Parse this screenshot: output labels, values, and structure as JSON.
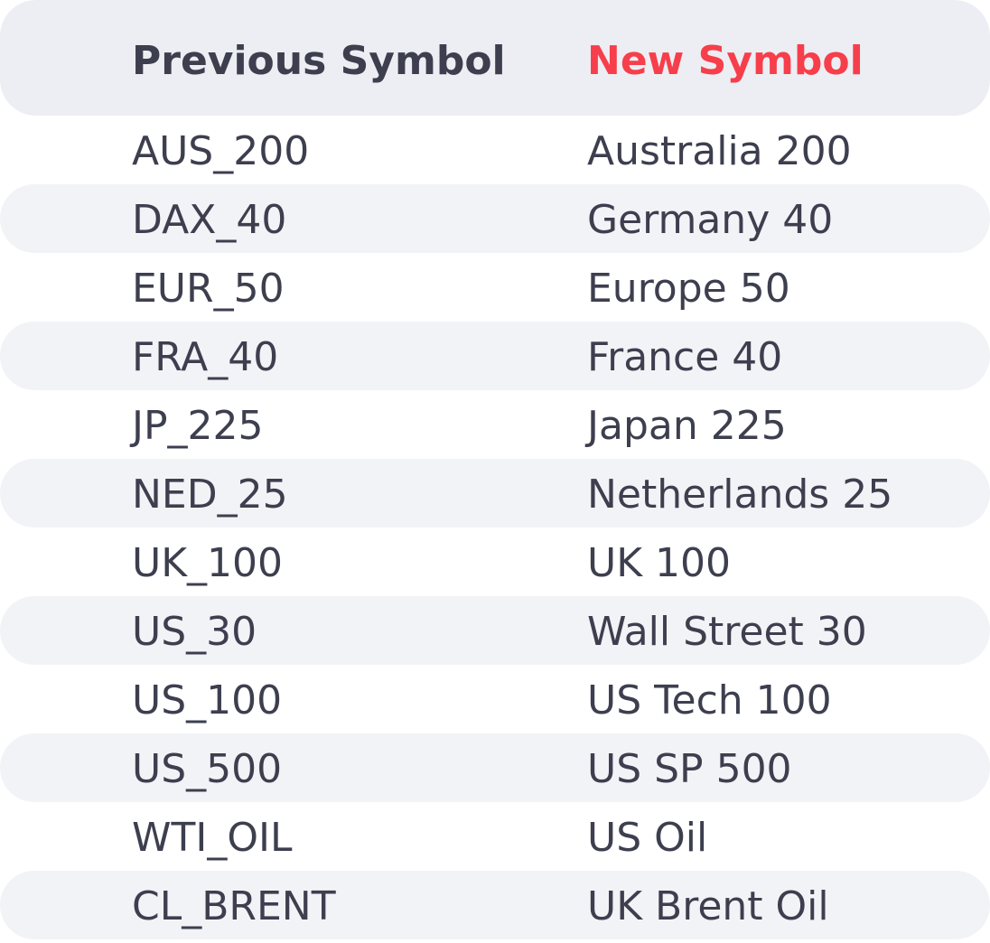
{
  "colors": {
    "header_background": "#eceef3",
    "row_stripe": "#f2f3f6",
    "text": "#3d3f4f",
    "accent": "#f73e4b"
  },
  "table": {
    "headers": {
      "previous": "Previous Symbol",
      "new": "New Symbol"
    },
    "rows": [
      {
        "previous": "AUS_200",
        "new": "Australia 200"
      },
      {
        "previous": "DAX_40",
        "new": "Germany 40"
      },
      {
        "previous": "EUR_50",
        "new": "Europe 50"
      },
      {
        "previous": "FRA_40",
        "new": "France 40"
      },
      {
        "previous": "JP_225",
        "new": "Japan 225"
      },
      {
        "previous": "NED_25",
        "new": "Netherlands 25"
      },
      {
        "previous": "UK_100",
        "new": "UK 100"
      },
      {
        "previous": "US_30",
        "new": "Wall Street 30"
      },
      {
        "previous": "US_100",
        "new": "US Tech 100"
      },
      {
        "previous": "US_500",
        "new": "US SP 500"
      },
      {
        "previous": "WTI_OIL",
        "new": "US Oil"
      },
      {
        "previous": "CL_BRENT",
        "new": "UK Brent Oil"
      }
    ]
  }
}
